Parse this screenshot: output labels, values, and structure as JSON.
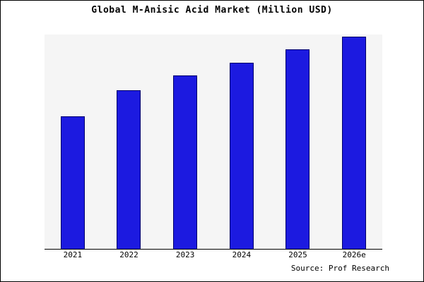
{
  "chart_data": {
    "type": "bar",
    "title": "Global M-Anisic Acid Market (Million USD)",
    "categories": [
      "2021",
      "2022",
      "2023",
      "2024",
      "2025",
      "2026e"
    ],
    "values": [
      62,
      74,
      81,
      87,
      93,
      99
    ],
    "xlabel": "",
    "ylabel": "",
    "ylim": [
      0,
      100
    ],
    "grid": false,
    "legend": false,
    "bar_color": "#1c1ae0",
    "bar_border_color": "#00006b",
    "plot_background": "#f5f5f5"
  },
  "footer": {
    "source": "Source: Prof Research"
  }
}
